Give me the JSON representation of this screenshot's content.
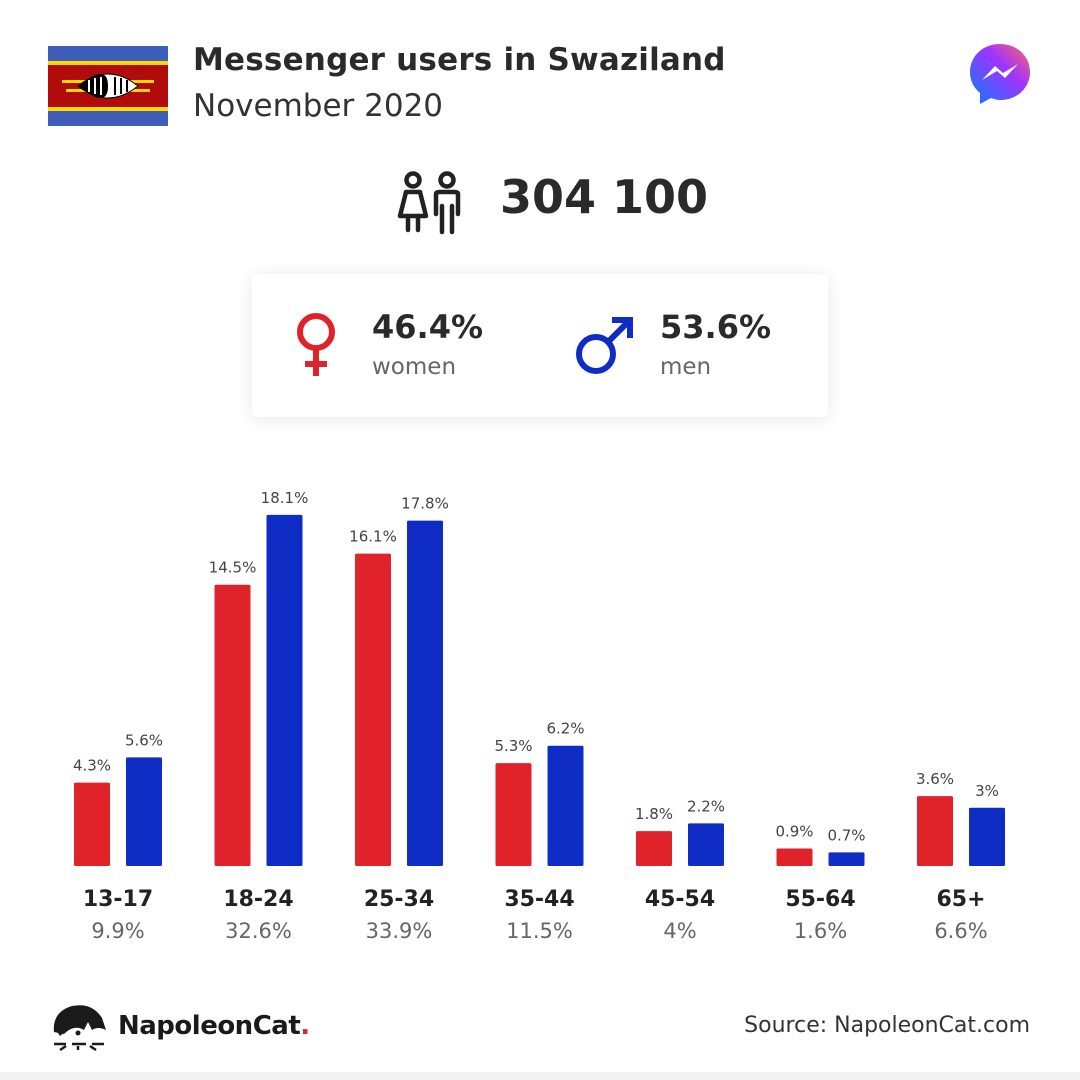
{
  "header": {
    "title": "Messenger users in Swaziland",
    "subtitle": "November 2020",
    "flag_icon": "swaziland-flag",
    "app_icon": "messenger-logo-icon"
  },
  "total": {
    "value": "304 100",
    "icon": "users-couple-icon"
  },
  "gender": {
    "women_pct": "46.4%",
    "women_label": "women",
    "men_pct": "53.6%",
    "men_label": "men"
  },
  "colors": {
    "women": "#e0232b",
    "men": "#0f2cc4"
  },
  "chart_data": {
    "type": "bar",
    "categories": [
      "13-17",
      "18-24",
      "25-34",
      "35-44",
      "45-54",
      "55-64",
      "65+"
    ],
    "category_totals": [
      "9.9%",
      "32.6%",
      "33.9%",
      "11.5%",
      "4%",
      "1.6%",
      "6.6%"
    ],
    "series": [
      {
        "values": [
          4.3,
          14.5,
          16.1,
          5.3,
          1.8,
          0.9,
          3.6
        ],
        "labels": [
          "4.3%",
          "14.5%",
          "16.1%",
          "5.3%",
          "1.8%",
          "0.9%",
          "3.6%"
        ]
      },
      {
        "values": [
          5.6,
          18.1,
          17.8,
          6.2,
          2.2,
          0.7,
          3
        ],
        "labels": [
          "5.6%",
          "18.1%",
          "17.8%",
          "6.2%",
          "2.2%",
          "0.7%",
          "3%"
        ]
      }
    ],
    "title": "",
    "xlabel": "",
    "ylabel": ""
  },
  "footer": {
    "brand": "NapoleonCat",
    "brand_dot": ".",
    "brand_icon": "napoleoncat-logo-icon",
    "source": "Source: NapoleonCat.com"
  }
}
